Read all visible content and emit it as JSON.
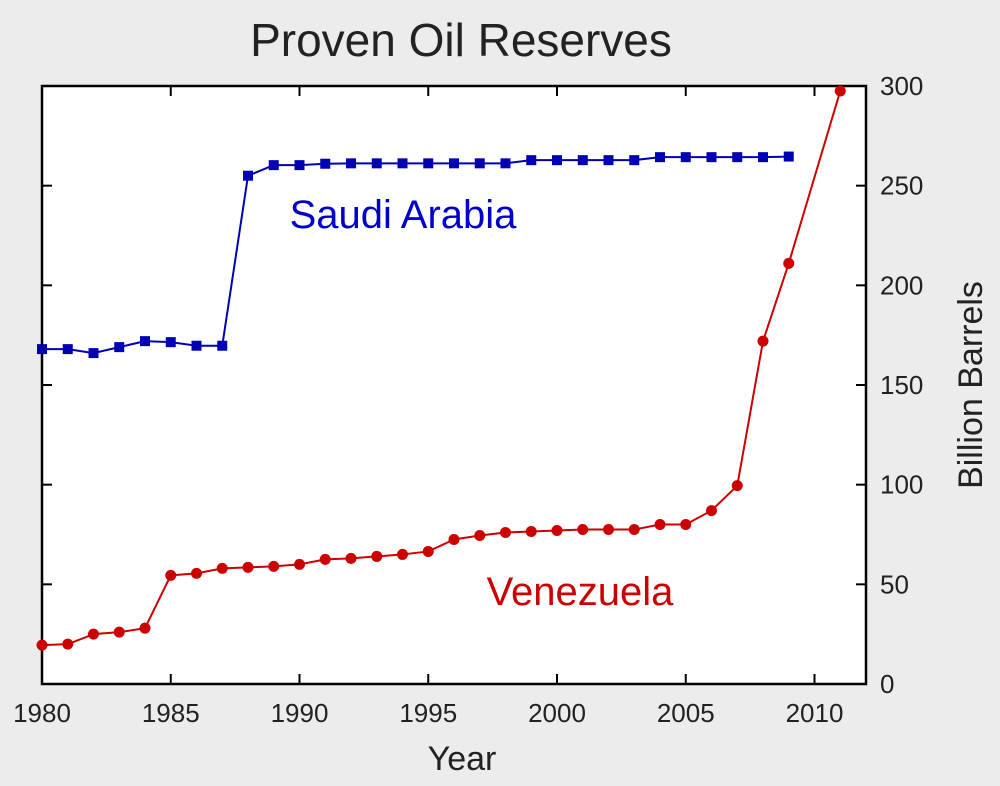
{
  "chart_data": {
    "type": "line",
    "title": "Proven Oil Reserves",
    "xlabel": "Year",
    "ylabel": "Billion Barrels",
    "xlim": [
      1980,
      2012
    ],
    "ylim": [
      0,
      300
    ],
    "x_ticks": [
      1980,
      1985,
      1990,
      1995,
      2000,
      2005,
      2010
    ],
    "y_ticks": [
      0,
      50,
      100,
      150,
      200,
      250,
      300
    ],
    "y_axis_side": "right",
    "grid": false,
    "legend": "none",
    "series": [
      {
        "name": "Saudi Arabia",
        "color": "#0000b4",
        "marker": "square",
        "x": [
          1980,
          1981,
          1982,
          1983,
          1984,
          1985,
          1986,
          1987,
          1988,
          1989,
          1990,
          1991,
          1992,
          1993,
          1994,
          1995,
          1996,
          1997,
          1998,
          1999,
          2000,
          2001,
          2002,
          2003,
          2004,
          2005,
          2006,
          2007,
          2008,
          2009
        ],
        "values": [
          168,
          168,
          166,
          169,
          172,
          171.5,
          169.7,
          169.7,
          255,
          260.3,
          260.3,
          261,
          261.2,
          261.2,
          261.2,
          261.2,
          261.2,
          261.2,
          261.2,
          262.8,
          262.8,
          262.8,
          262.8,
          262.8,
          264.3,
          264.3,
          264.3,
          264.3,
          264.3,
          264.6
        ]
      },
      {
        "name": "Venezuela",
        "color": "#cc0000",
        "marker": "circle",
        "x": [
          1980,
          1981,
          1982,
          1983,
          1984,
          1985,
          1986,
          1987,
          1988,
          1989,
          1990,
          1991,
          1992,
          1993,
          1994,
          1995,
          1996,
          1997,
          1998,
          1999,
          2000,
          2001,
          2002,
          2003,
          2004,
          2005,
          2006,
          2007,
          2008,
          2009,
          2011
        ],
        "values": [
          19.5,
          20,
          25,
          26,
          28,
          54.5,
          55.5,
          58,
          58.5,
          59,
          60,
          62.5,
          63,
          64,
          65,
          66.5,
          72.5,
          74.5,
          76,
          76.5,
          77,
          77.5,
          77.5,
          77.5,
          80,
          80,
          87,
          99.5,
          172,
          211,
          297.5
        ]
      }
    ],
    "annotations": [
      {
        "text": "Saudi Arabia",
        "series": 0,
        "color": "#0000cc"
      },
      {
        "text": "Venezuela",
        "series": 1,
        "color": "#cc0000"
      }
    ]
  }
}
